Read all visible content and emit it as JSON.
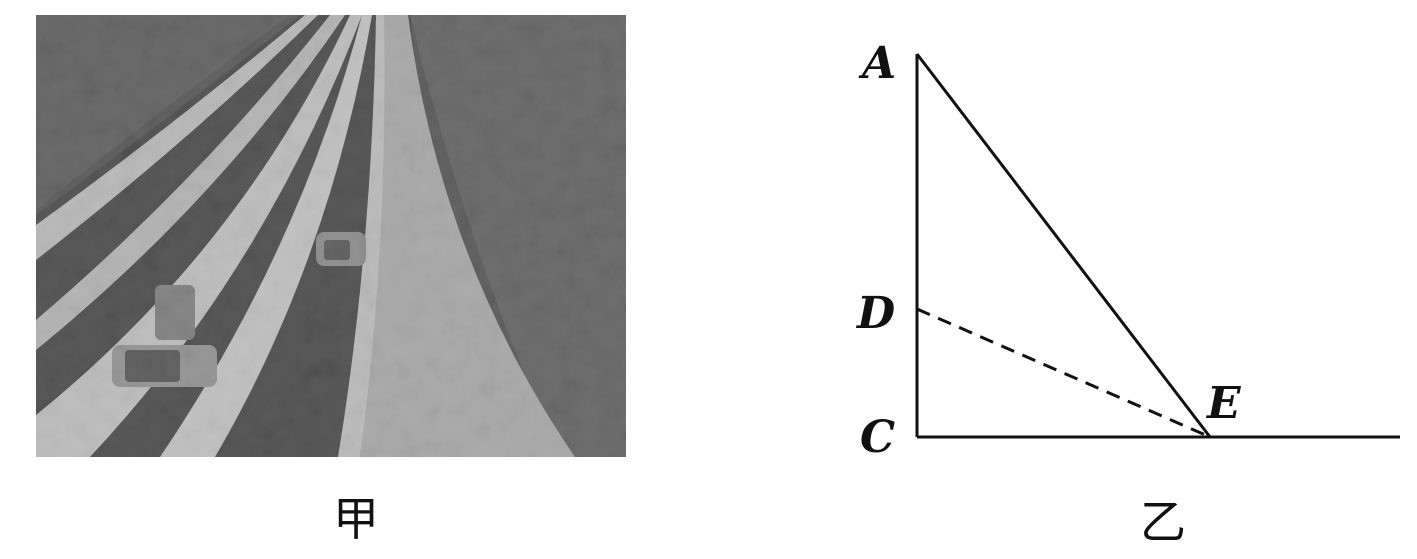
{
  "figure_jia": {
    "caption": "甲"
  },
  "figure_yi": {
    "caption": "乙",
    "points": {
      "A": "A",
      "D": "D",
      "C": "C",
      "E": "E"
    }
  }
}
